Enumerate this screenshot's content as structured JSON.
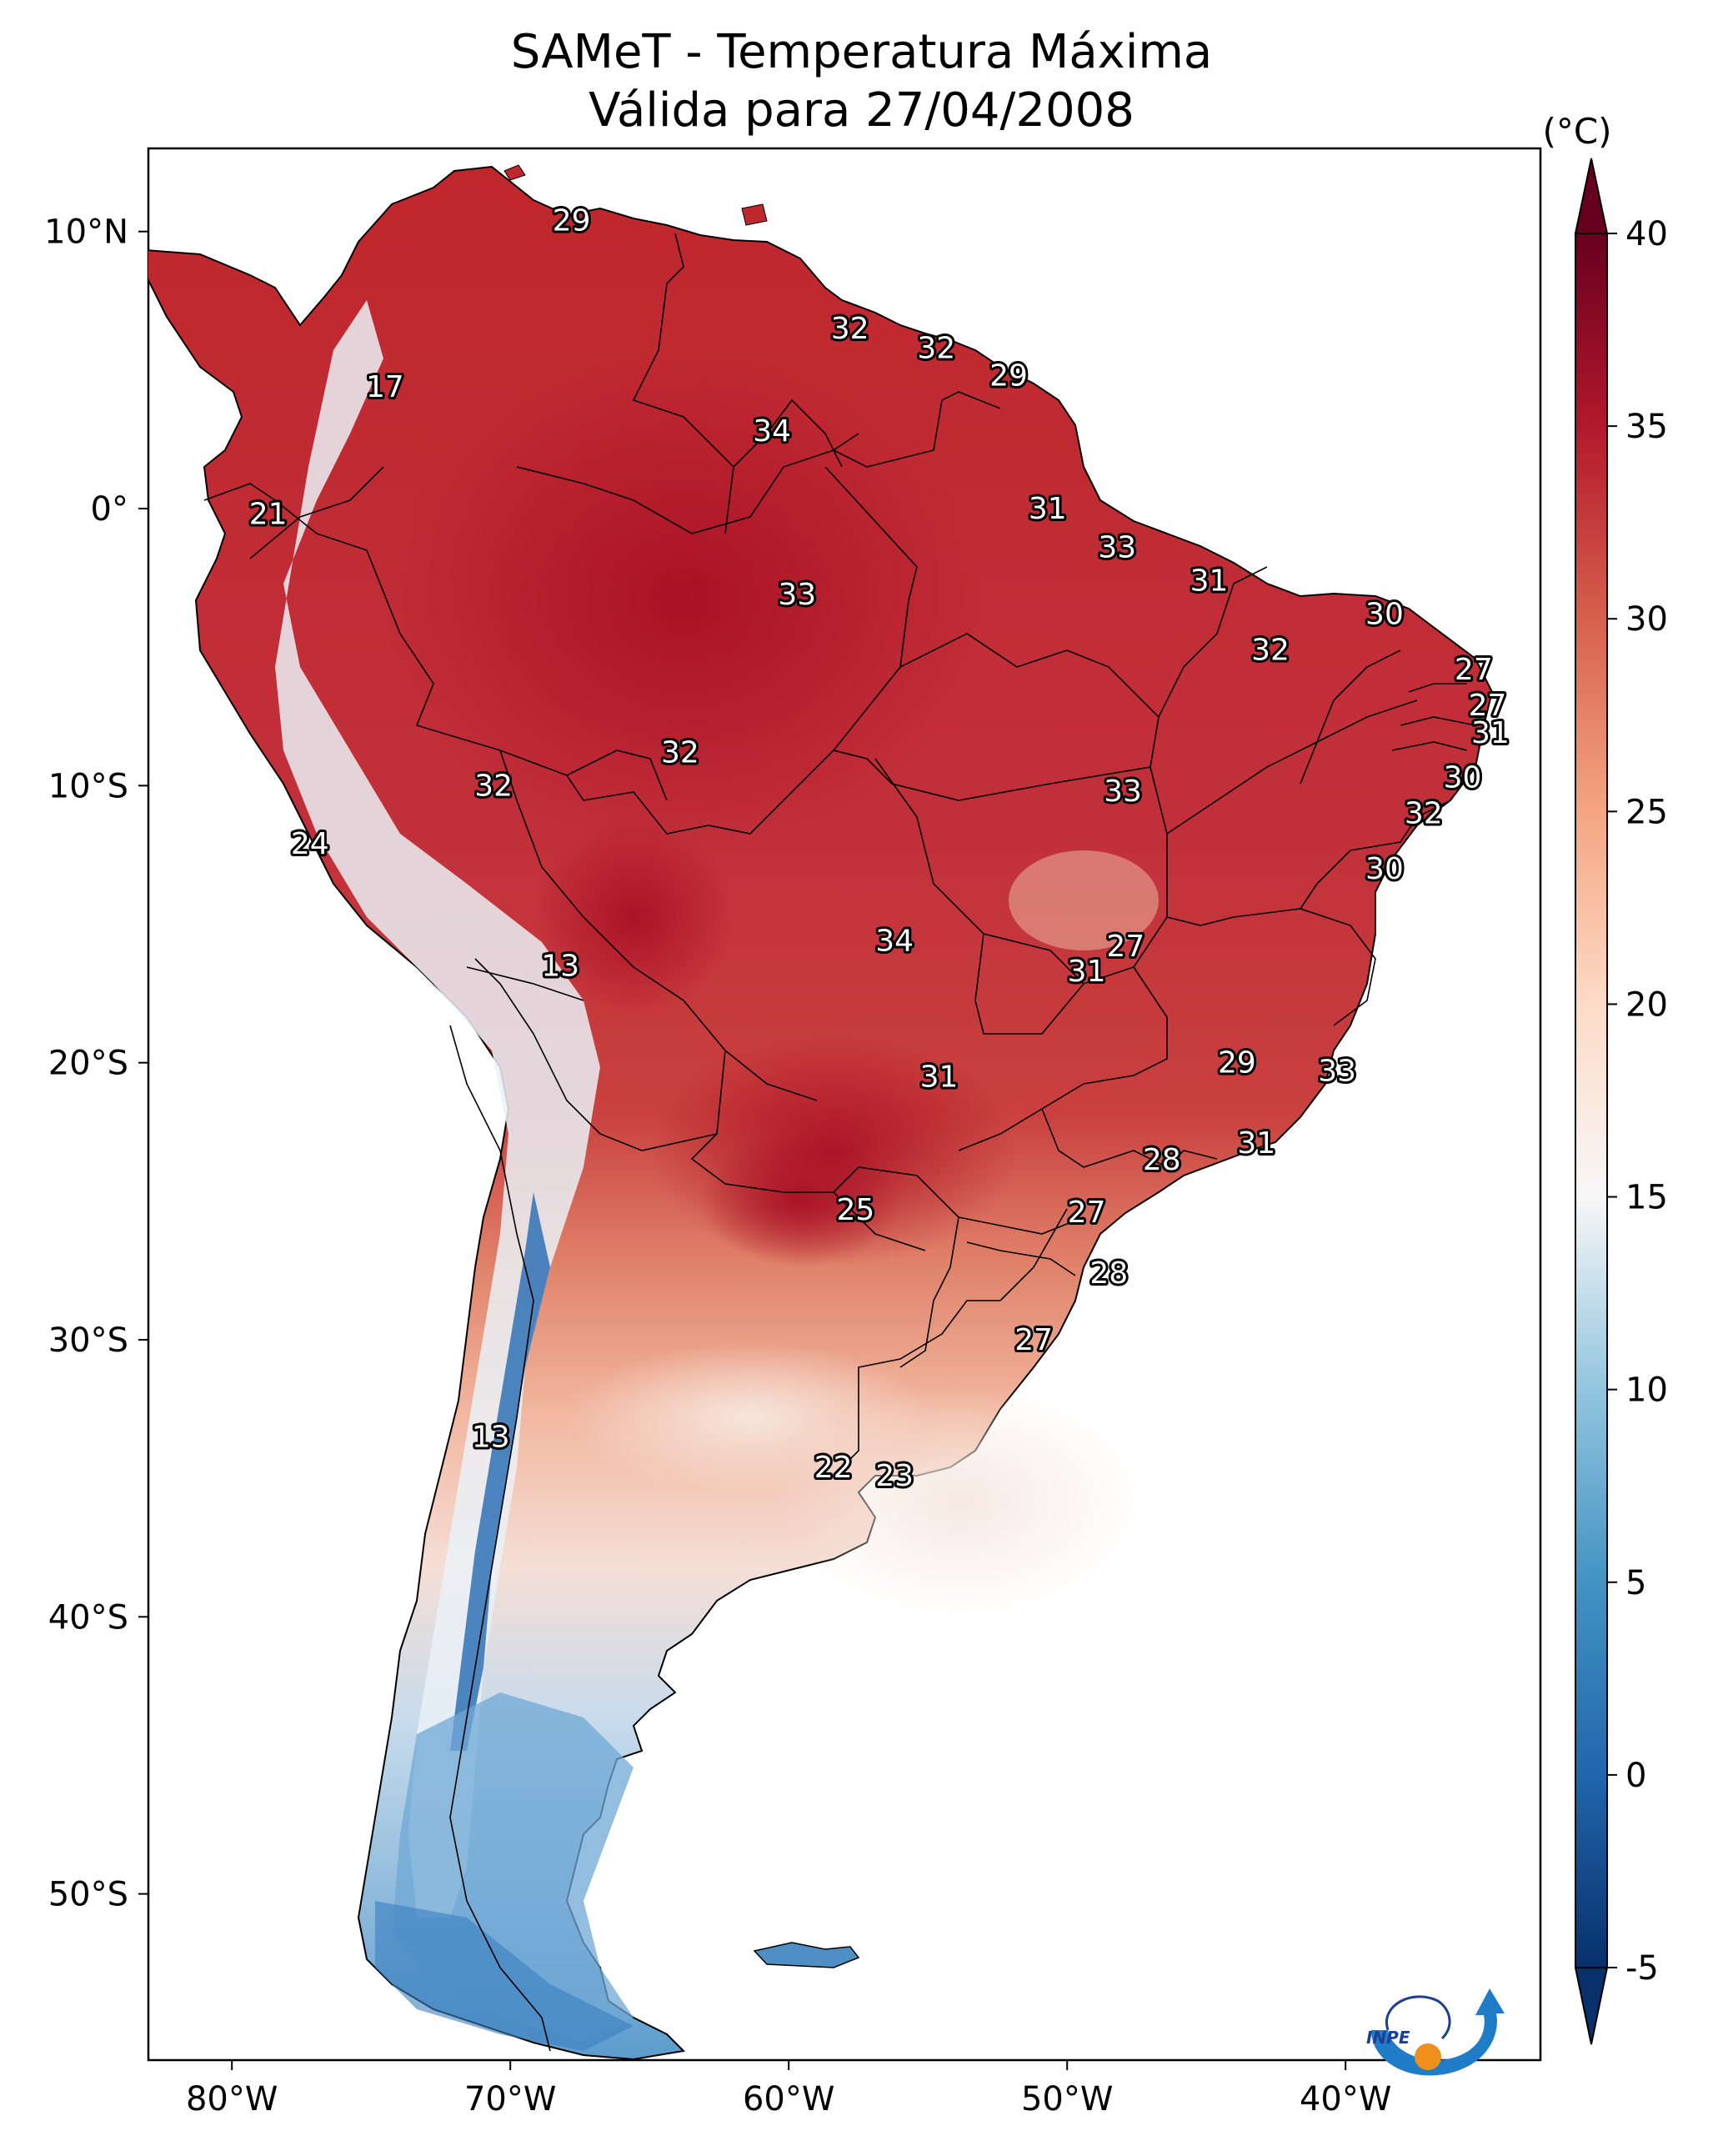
{
  "title": {
    "line1": "SAMeT - Temperatura Máxima",
    "line2": "Válida para 27/04/2008"
  },
  "map": {
    "lon_range": [
      -83,
      -33
    ],
    "lat_range": [
      -56,
      13
    ],
    "lon_ticks": [
      {
        "value": -80,
        "label": "80°W"
      },
      {
        "value": -70,
        "label": "70°W"
      },
      {
        "value": -60,
        "label": "60°W"
      },
      {
        "value": -50,
        "label": "50°W"
      },
      {
        "value": -40,
        "label": "40°W"
      }
    ],
    "lat_ticks": [
      {
        "value": 10,
        "label": "10°N"
      },
      {
        "value": 0,
        "label": "0°"
      },
      {
        "value": -10,
        "label": "10°S"
      },
      {
        "value": -20,
        "label": "20°S"
      },
      {
        "value": -30,
        "label": "30°S"
      },
      {
        "value": -40,
        "label": "40°S"
      },
      {
        "value": -50,
        "label": "50°S"
      }
    ],
    "city_labels": [
      {
        "value": "29",
        "lon": -67.8,
        "lat": 10.4
      },
      {
        "value": "32",
        "lon": -57.8,
        "lat": 6.5
      },
      {
        "value": "32",
        "lon": -54.7,
        "lat": 5.8
      },
      {
        "value": "29",
        "lon": -52.1,
        "lat": 4.8
      },
      {
        "value": "17",
        "lon": -74.5,
        "lat": 4.4
      },
      {
        "value": "34",
        "lon": -60.6,
        "lat": 2.8
      },
      {
        "value": "21",
        "lon": -78.7,
        "lat": -0.2
      },
      {
        "value": "31",
        "lon": -50.7,
        "lat": 0.0
      },
      {
        "value": "33",
        "lon": -48.2,
        "lat": -1.4
      },
      {
        "value": "33",
        "lon": -59.7,
        "lat": -3.1
      },
      {
        "value": "31",
        "lon": -44.9,
        "lat": -2.6
      },
      {
        "value": "30",
        "lon": -38.6,
        "lat": -3.8
      },
      {
        "value": "32",
        "lon": -42.7,
        "lat": -5.1
      },
      {
        "value": "27",
        "lon": -35.4,
        "lat": -5.8
      },
      {
        "value": "27",
        "lon": -34.9,
        "lat": -7.1
      },
      {
        "value": "31",
        "lon": -34.8,
        "lat": -8.1
      },
      {
        "value": "32",
        "lon": -63.9,
        "lat": -8.8
      },
      {
        "value": "32",
        "lon": -70.6,
        "lat": -10.0
      },
      {
        "value": "33",
        "lon": -48.0,
        "lat": -10.2
      },
      {
        "value": "30",
        "lon": -35.8,
        "lat": -9.7
      },
      {
        "value": "32",
        "lon": -37.2,
        "lat": -11.0
      },
      {
        "value": "24",
        "lon": -77.2,
        "lat": -12.1
      },
      {
        "value": "30",
        "lon": -38.6,
        "lat": -13.0
      },
      {
        "value": "27",
        "lon": -47.9,
        "lat": -15.8
      },
      {
        "value": "34",
        "lon": -56.2,
        "lat": -15.6
      },
      {
        "value": "31",
        "lon": -49.3,
        "lat": -16.7
      },
      {
        "value": "13",
        "lon": -68.2,
        "lat": -16.5
      },
      {
        "value": "29",
        "lon": -43.9,
        "lat": -20.0
      },
      {
        "value": "33",
        "lon": -40.3,
        "lat": -20.3
      },
      {
        "value": "31",
        "lon": -54.6,
        "lat": -20.5
      },
      {
        "value": "31",
        "lon": -43.2,
        "lat": -22.9
      },
      {
        "value": "28",
        "lon": -46.6,
        "lat": -23.5
      },
      {
        "value": "25",
        "lon": -57.6,
        "lat": -25.3
      },
      {
        "value": "27",
        "lon": -49.3,
        "lat": -25.4
      },
      {
        "value": "28",
        "lon": -48.5,
        "lat": -27.6
      },
      {
        "value": "27",
        "lon": -51.2,
        "lat": -30.0
      },
      {
        "value": "13",
        "lon": -70.7,
        "lat": -33.5
      },
      {
        "value": "22",
        "lon": -58.4,
        "lat": -34.6
      },
      {
        "value": "23",
        "lon": -56.2,
        "lat": -34.9
      }
    ]
  },
  "colorbar": {
    "unit": "(°C)",
    "range": [
      -5,
      40
    ],
    "ticks": [
      "-5",
      "0",
      "5",
      "10",
      "15",
      "20",
      "25",
      "30",
      "35",
      "40"
    ],
    "colors": [
      "#08306b",
      "#2166ac",
      "#4393c3",
      "#92c5de",
      "#f7f7f7",
      "#fddbc7",
      "#f4a582",
      "#d6604d",
      "#b2182b",
      "#67001f"
    ]
  },
  "logo": {
    "text": "INPE"
  }
}
